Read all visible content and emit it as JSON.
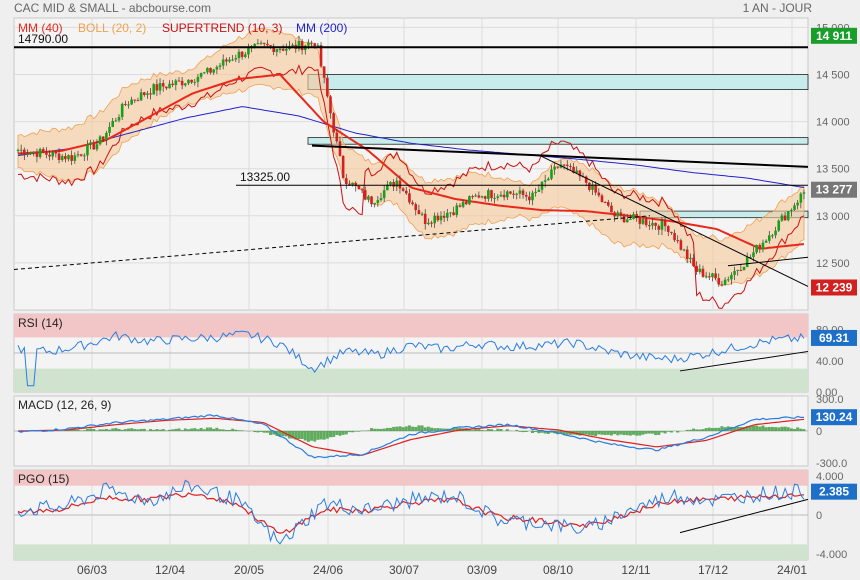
{
  "header": {
    "title": "CAC MID & SMALL - abcbourse.com",
    "period": "1 AN - JOUR"
  },
  "colors": {
    "candle_up": "#18a018",
    "candle_down": "#d42020",
    "mm40": "#e8281a",
    "mm200": "#2222cc",
    "boll_fill": "#f5c89a",
    "boll_line": "#f0a050",
    "supertrend_up": "#129a12",
    "supertrend_down": "#cc1111",
    "rsi_line": "#2a7de0",
    "macd_line": "#2a7de0",
    "macd_signal": "#e02020",
    "macd_hist": "#3a9a3a",
    "pgo_line": "#2a7de0",
    "pgo_signal": "#e02020",
    "zone_red": "#f2c6c6",
    "zone_green": "#cfe3cf",
    "zone_cyan": "#c8ecec",
    "badge_green": "#1a9e2a",
    "badge_red": "#d22020",
    "badge_blue": "#1d6fc8",
    "badge_gray": "#777777"
  },
  "x_axis": {
    "labels": [
      "06/03",
      "12/04",
      "20/05",
      "24/06",
      "30/07",
      "03/09",
      "08/10",
      "12/11",
      "17/12",
      "24/01"
    ]
  },
  "price_panel": {
    "legend": [
      {
        "label": "MM (40)",
        "color": "#e8281a"
      },
      {
        "label": "BOLL (20, 2)",
        "color": "#f0a050"
      },
      {
        "label": "SUPERTREND (10, 3)",
        "color": "#cc1111"
      },
      {
        "label": "MM (200)",
        "color": "#2222cc"
      }
    ],
    "y_ticks": [
      "15 000",
      "14 500",
      "14 000",
      "13 500",
      "13 000",
      "12 500"
    ],
    "levels": [
      {
        "label": "14790.00",
        "value": 14790
      },
      {
        "label": "13325.00",
        "value": 13325
      }
    ],
    "badges": [
      {
        "text": "14 911",
        "value": 14911,
        "color": "#1a9e2a"
      },
      {
        "text": "13 277",
        "value": 13277,
        "color": "#777777"
      },
      {
        "text": "12 239",
        "value": 12239,
        "color": "#d22020"
      }
    ]
  },
  "rsi_panel": {
    "title": "RSI (14)",
    "y_ticks": [
      "80.00",
      "40.00",
      "0.00"
    ],
    "badge": "69.31",
    "overbought": 70,
    "oversold": 30
  },
  "macd_panel": {
    "title": "MACD (12, 26, 9)",
    "y_ticks": [
      "300.0",
      "0",
      "-300.0"
    ],
    "badge": "130.24"
  },
  "pgo_panel": {
    "title": "PGO (15)",
    "y_ticks": [
      "4.000",
      "0",
      "-4.000"
    ],
    "badge": "2.385",
    "upper": 3,
    "lower": -3
  },
  "chart_data": {
    "type": "candlestick",
    "date_labels": [
      "06/03",
      "12/04",
      "20/05",
      "24/06",
      "30/07",
      "03/09",
      "08/10",
      "12/11",
      "17/12",
      "24/01"
    ],
    "close_anchors": [
      13700,
      13660,
      13620,
      13780,
      14200,
      14350,
      14420,
      14520,
      14700,
      14800,
      14780,
      14850,
      13420,
      13150,
      13380,
      12950,
      13050,
      13220,
      13250,
      13200,
      13550,
      13350,
      13000,
      12950,
      12880,
      12420,
      12300,
      12560,
      12900,
      13250
    ],
    "mm40_anchors": [
      13660,
      13690,
      13800,
      14050,
      14300,
      14450,
      14500,
      14000,
      13700,
      13300,
      13180,
      13110,
      13060,
      13050,
      13000,
      12940,
      12860,
      12650,
      12700
    ],
    "mm200_anchors": [
      13640,
      13720,
      13880,
      14040,
      14160,
      14060,
      13880,
      13770,
      13700,
      13650,
      13600,
      13540,
      13460,
      13400,
      13300
    ],
    "price_ylim": [
      12000,
      15100
    ],
    "rsi_anchors": [
      55,
      52,
      60,
      72,
      65,
      68,
      70,
      74,
      62,
      30,
      52,
      48,
      60,
      55,
      62,
      58,
      60,
      63,
      52,
      45,
      42,
      49,
      58,
      66,
      69
    ],
    "macd_anchors": [
      -10,
      20,
      80,
      110,
      150,
      60,
      -250,
      -220,
      -30,
      30,
      60,
      -20,
      -120,
      -180,
      -60,
      110,
      130
    ],
    "macd_signal_anchors": [
      0,
      10,
      60,
      100,
      120,
      80,
      -150,
      -230,
      -80,
      10,
      50,
      10,
      -80,
      -150,
      -90,
      60,
      110
    ],
    "pgo_anchors": [
      0.5,
      0.8,
      2.5,
      1.5,
      3.0,
      1.5,
      -3.0,
      1.2,
      0.5,
      1.5,
      2.0,
      -0.5,
      -0.8,
      -1.5,
      0.5,
      2.0,
      1.5,
      2.2,
      2.4
    ],
    "pgo_signal_anchors": [
      0.3,
      0.6,
      1.8,
      1.6,
      2.3,
      1.2,
      -2.0,
      0.5,
      0.5,
      1.3,
      1.5,
      -0.2,
      -0.6,
      -1.2,
      0.2,
      1.5,
      1.6,
      1.9,
      2.1
    ]
  }
}
